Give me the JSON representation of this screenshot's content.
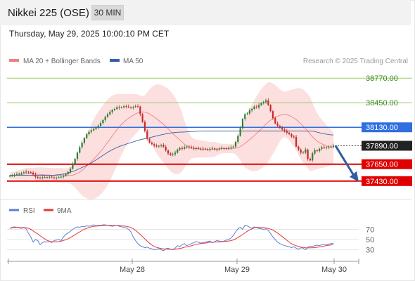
{
  "header": {
    "symbol": "Nikkei 225 (OSE)",
    "timeframe": "30 MIN",
    "datetime": "Thursday, May 29, 2025 10:00:10 PM CET"
  },
  "legend": {
    "ma20_label": "MA 20 + Bollinger Bands",
    "ma50_label": "MA 50",
    "copyright": "Research © 2025 Trading Central"
  },
  "rsi_legend": {
    "rsi_label": "RSI",
    "ma_label": "9MA"
  },
  "colors": {
    "up": "#2e7d32",
    "down": "#c62828",
    "ma20": "#f08080",
    "ma50": "#3a5fa8",
    "resistance": "#9ccc65",
    "support": "#e00000",
    "pivot": "#2f6fe0",
    "last": "#222222",
    "rsi": "#5b7fd6",
    "rsi_ma": "#e53935",
    "arrow": "#2f5fa0"
  },
  "chart_data": [
    {
      "type": "candlestick",
      "x_labels": [
        "May 28",
        "May 29",
        "May 30"
      ],
      "ylim": [
        37300,
        38900
      ],
      "price_levels": [
        {
          "value": 38770.0,
          "label": "38770.00",
          "kind": "resistance"
        },
        {
          "value": 38450.0,
          "label": "38450.00",
          "kind": "resistance"
        },
        {
          "value": 38130.0,
          "label": "38130.00",
          "kind": "pivot"
        },
        {
          "value": 37890.0,
          "label": "37890.00",
          "kind": "last"
        },
        {
          "value": 37650.0,
          "label": "37650.00",
          "kind": "support"
        },
        {
          "value": 37430.0,
          "label": "37430.00",
          "kind": "support"
        }
      ],
      "close": [
        37500,
        37505,
        37512,
        37520,
        37528,
        37535,
        37545,
        37552,
        37546,
        37540,
        37515,
        37485,
        37470,
        37475,
        37480,
        37478,
        37482,
        37486,
        37478,
        37472,
        37476,
        37480,
        37486,
        37500,
        37520,
        37548,
        37590,
        37650,
        37720,
        37800,
        37870,
        37930,
        37990,
        38040,
        38070,
        38090,
        38110,
        38130,
        38150,
        38185,
        38225,
        38265,
        38300,
        38330,
        38355,
        38370,
        38390,
        38385,
        38392,
        38405,
        38400,
        38390,
        38385,
        38395,
        38405,
        38400,
        38300,
        38200,
        38080,
        37980,
        37930,
        37910,
        37890,
        37880,
        37890,
        37900,
        37875,
        37830,
        37790,
        37770,
        37780,
        37800,
        37840,
        37860,
        37850,
        37870,
        37880,
        37872,
        37860,
        37850,
        37862,
        37850,
        37846,
        37852,
        37845,
        37840,
        37850,
        37856,
        37845,
        37840,
        37850,
        37860,
        37855,
        37850,
        37860,
        37870,
        37880,
        37940,
        38020,
        38120,
        38240,
        38300,
        38310,
        38350,
        38370,
        38400,
        38390,
        38420,
        38445,
        38460,
        38480,
        38420,
        38340,
        38250,
        38180,
        38150,
        38130,
        38100,
        38080,
        38060,
        38040,
        38010,
        38005,
        37880,
        37840,
        37800,
        37800,
        37840,
        37720,
        37700,
        37790,
        37830,
        37820,
        37850,
        37870,
        37860,
        37870,
        37880,
        37875,
        37890
      ],
      "sma50": [
        37505,
        37505,
        37505,
        37505,
        37505,
        37505,
        37505,
        37505,
        37505,
        37505,
        37505,
        37505,
        37505,
        37505,
        37505,
        37505,
        37505,
        37505,
        37505,
        37507,
        37510,
        37513,
        37517,
        37522,
        37528,
        37535,
        37545,
        37555,
        37565,
        37580,
        37593,
        37607,
        37620,
        37635,
        37650,
        37665,
        37685,
        37705,
        37725,
        37745,
        37765,
        37785,
        37805,
        37822,
        37838,
        37853,
        37868,
        37880,
        37892,
        37902,
        37912,
        37922,
        37930,
        37940,
        37950,
        37960,
        37968,
        37975,
        37982,
        37988,
        37995,
        38002,
        38010,
        38017,
        38025,
        38032,
        38038,
        38044,
        38050,
        38055,
        38060,
        38063,
        38065,
        38067,
        38068,
        38069,
        38071,
        38073,
        38075,
        38076,
        38078,
        38080,
        38081,
        38082,
        38082,
        38082,
        38082,
        38082,
        38082,
        38082,
        38082,
        38082,
        38082,
        38082,
        38082,
        38082,
        38082,
        38082,
        38082,
        38082,
        38082,
        38082,
        38082,
        38082,
        38082,
        38082,
        38082,
        38082,
        38082,
        38082,
        38082,
        38082,
        38082,
        38082,
        38082,
        38082,
        38082,
        38082,
        38082,
        38082,
        38082,
        38082,
        38082,
        38082,
        38082,
        38082,
        38082,
        38082,
        38082,
        38081,
        38080,
        38075,
        38067,
        38060,
        38052,
        38047,
        38040,
        38035,
        38032,
        38030
      ],
      "bb_period": 20,
      "bb_stddev": 2,
      "rsi": {
        "ylim": [
          10,
          90
        ],
        "levels": [
          70,
          50,
          30
        ],
        "values": [
          72,
          74,
          75,
          74,
          73,
          72,
          74,
          71,
          62,
          55,
          45,
          50,
          48,
          40,
          44,
          46,
          45,
          47,
          44,
          48,
          49,
          50,
          48,
          55,
          60,
          63,
          66,
          70,
          73,
          75,
          74,
          76,
          75,
          77,
          76,
          78,
          79,
          77,
          78,
          78,
          79,
          79,
          78,
          77,
          76,
          77,
          78,
          76,
          75,
          74,
          73,
          70,
          65,
          55,
          48,
          42,
          38,
          36,
          34,
          35,
          33,
          32,
          30,
          31,
          32,
          30,
          28,
          32,
          33,
          31,
          30,
          33,
          38,
          36,
          40,
          42,
          38,
          40,
          42,
          44,
          46,
          45,
          43,
          44,
          45,
          46,
          47,
          44,
          46,
          48,
          47,
          46,
          47,
          49,
          50,
          53,
          58,
          65,
          71,
          74,
          70,
          78,
          77,
          74,
          72,
          75,
          73,
          72,
          71,
          70,
          71,
          68,
          62,
          55,
          50,
          45,
          42,
          40,
          38,
          37,
          36,
          34,
          36,
          33,
          31,
          34,
          33,
          30,
          35,
          37,
          36,
          38,
          39,
          38,
          40,
          41,
          40,
          41,
          42,
          43
        ]
      }
    }
  ]
}
